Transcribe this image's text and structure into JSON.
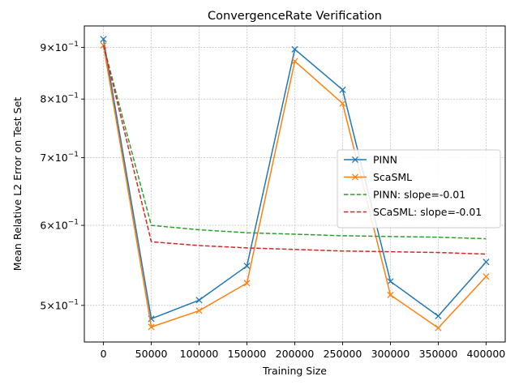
{
  "chart_data": {
    "type": "line",
    "title": "ConvergenceRate Verification",
    "xlabel": "Training Size",
    "ylabel": "Mean Relative L2 Error on Test Set",
    "yscale": "log",
    "xlim": [
      -20000,
      420000
    ],
    "ylim": [
      0.46,
      0.945
    ],
    "grid": true,
    "legend_position": "center-right",
    "x_ticks": [
      0,
      50000,
      100000,
      150000,
      200000,
      250000,
      300000,
      350000,
      400000
    ],
    "x_tick_labels": [
      "0",
      "50000",
      "100000",
      "150000",
      "200000",
      "250000",
      "300000",
      "350000",
      "400000"
    ],
    "y_ticks": [
      0.5,
      0.6,
      0.7,
      0.8,
      0.9
    ],
    "y_tick_labels": [
      {
        "base": "5",
        "exp": "−1"
      },
      {
        "base": "6",
        "exp": "−1"
      },
      {
        "base": "7",
        "exp": "−1"
      },
      {
        "base": "8",
        "exp": "−1"
      },
      {
        "base": "9",
        "exp": "−1"
      }
    ],
    "y_tick_prefix_mid": "×10",
    "x": [
      0,
      50000,
      100000,
      150000,
      200000,
      250000,
      300000,
      350000,
      400000
    ],
    "series": [
      {
        "name": "PINN",
        "style": "solid",
        "marker": "x",
        "color": "#1f77b4",
        "values": [
          0.917,
          0.485,
          0.506,
          0.547,
          0.896,
          0.817,
          0.528,
          0.488,
          0.552
        ]
      },
      {
        "name": "ScaSML",
        "style": "solid",
        "marker": "x",
        "color": "#ff7f0e",
        "values": [
          0.904,
          0.476,
          0.494,
          0.526,
          0.872,
          0.792,
          0.512,
          0.475,
          0.534
        ]
      },
      {
        "name": "PINN: slope=-0.01",
        "style": "dashed",
        "marker": "none",
        "color": "#2ca02c",
        "values": [
          0.904,
          0.6,
          0.594,
          0.59,
          0.588,
          0.586,
          0.585,
          0.584,
          0.582
        ]
      },
      {
        "name": "SCaSML: slope=-0.01",
        "style": "dashed",
        "marker": "none",
        "color": "#d62728",
        "values": [
          0.904,
          0.578,
          0.573,
          0.57,
          0.568,
          0.566,
          0.565,
          0.564,
          0.562
        ]
      }
    ]
  }
}
